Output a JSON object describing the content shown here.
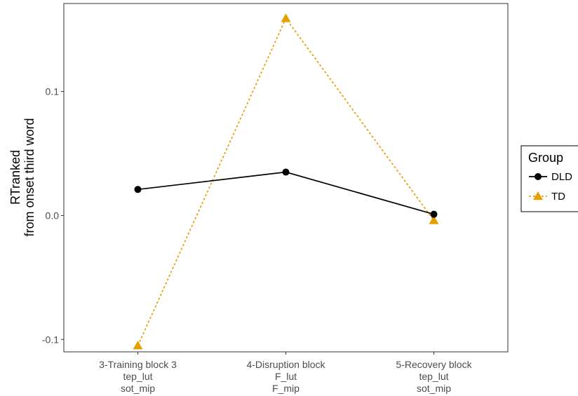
{
  "chart_data": {
    "type": "line",
    "categories": [
      [
        "3-Training block 3",
        "tep_lut",
        "sot_mip"
      ],
      [
        "4-Disruption block",
        "F_lut",
        "F_mip"
      ],
      [
        "5-Recovery block",
        "tep_lut",
        "sot_mip"
      ]
    ],
    "ylabel": [
      "RTranked",
      "from onset third word"
    ],
    "xlabel": "",
    "ylim": [
      -0.11,
      0.171
    ],
    "yticks": [
      -0.1,
      0.0,
      0.1
    ],
    "ytick_labels": [
      "-0.1",
      "0.0",
      "0.1"
    ],
    "grid": false,
    "legend": {
      "title": "Group",
      "placement": "right"
    },
    "series": [
      {
        "name": "DLD",
        "values": [
          0.021,
          0.035,
          0.001
        ],
        "color": "#000000",
        "marker": "circle",
        "linestyle": "solid"
      },
      {
        "name": "TD",
        "values": [
          -0.105,
          0.159,
          -0.004
        ],
        "color": "#E69F00",
        "marker": "triangle",
        "linestyle": "dotted"
      }
    ]
  }
}
